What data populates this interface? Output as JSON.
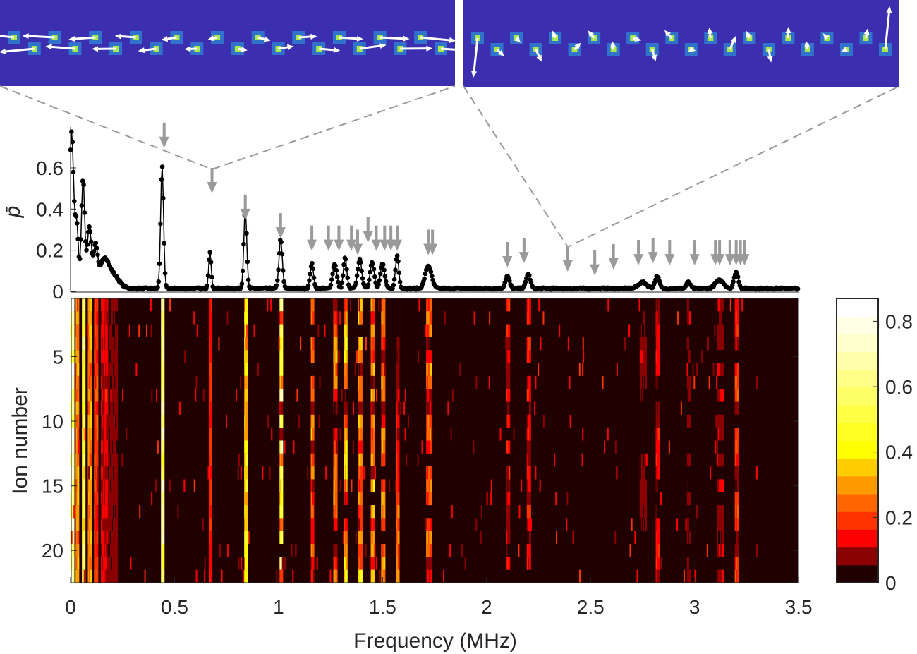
{
  "chart_data": [
    {
      "type": "line",
      "title": "",
      "ylabel": "p̄",
      "xlabel": "",
      "xlim": [
        0,
        3.5
      ],
      "ylim": [
        0,
        0.78
      ],
      "yticks": [
        "0",
        "0.2",
        "0.4",
        "0.6"
      ],
      "ytick_values": [
        0,
        0.2,
        0.4,
        0.6
      ],
      "peaks": [
        [
          0.005,
          0.76,
          0.01
        ],
        [
          0.06,
          0.53,
          0.008
        ],
        [
          0.03,
          0.3,
          0.008
        ],
        [
          0.09,
          0.3,
          0.01
        ],
        [
          0.12,
          0.2,
          0.01
        ],
        [
          0.16,
          0.12,
          0.02
        ],
        [
          0.2,
          0.07,
          0.03
        ],
        [
          0.44,
          0.6,
          0.007
        ],
        [
          0.67,
          0.18,
          0.006
        ],
        [
          0.84,
          0.39,
          0.007
        ],
        [
          1.01,
          0.24,
          0.008
        ],
        [
          1.16,
          0.12,
          0.008
        ],
        [
          1.27,
          0.12,
          0.01
        ],
        [
          1.32,
          0.15,
          0.008
        ],
        [
          1.39,
          0.14,
          0.01
        ],
        [
          1.45,
          0.13,
          0.01
        ],
        [
          1.5,
          0.12,
          0.01
        ],
        [
          1.57,
          0.16,
          0.008
        ],
        [
          1.72,
          0.11,
          0.015
        ],
        [
          2.1,
          0.06,
          0.01
        ],
        [
          2.2,
          0.07,
          0.01
        ],
        [
          2.75,
          0.03,
          0.02
        ],
        [
          2.82,
          0.06,
          0.01
        ],
        [
          2.97,
          0.03,
          0.01
        ],
        [
          3.12,
          0.04,
          0.02
        ],
        [
          3.2,
          0.08,
          0.01
        ]
      ],
      "arrows": [
        [
          0.45,
          0.82
        ],
        [
          0.68,
          0.6
        ],
        [
          0.84,
          0.47
        ],
        [
          1.01,
          0.38
        ],
        [
          1.16,
          0.32
        ],
        [
          1.24,
          0.32
        ],
        [
          1.29,
          0.32
        ],
        [
          1.35,
          0.32
        ],
        [
          1.38,
          0.3
        ],
        [
          1.43,
          0.36
        ],
        [
          1.47,
          0.32
        ],
        [
          1.51,
          0.32
        ],
        [
          1.54,
          0.32
        ],
        [
          1.57,
          0.32
        ],
        [
          1.72,
          0.3
        ],
        [
          1.74,
          0.3
        ],
        [
          2.1,
          0.24
        ],
        [
          2.18,
          0.26
        ],
        [
          2.39,
          0.22
        ],
        [
          2.52,
          0.2
        ],
        [
          2.61,
          0.23
        ],
        [
          2.73,
          0.25
        ],
        [
          2.8,
          0.26
        ],
        [
          2.88,
          0.25
        ],
        [
          3.0,
          0.25
        ],
        [
          3.1,
          0.25
        ],
        [
          3.12,
          0.25
        ],
        [
          3.17,
          0.25
        ],
        [
          3.2,
          0.25
        ],
        [
          3.22,
          0.25
        ],
        [
          3.24,
          0.25
        ]
      ]
    },
    {
      "type": "heatmap",
      "xlabel": "Frequency (MHz)",
      "ylabel": "Ion number",
      "xlim": [
        0,
        3.5
      ],
      "ylim": [
        1,
        22
      ],
      "xticks": [
        "0",
        "0.5",
        "1",
        "1.5",
        "2",
        "2.5",
        "3",
        "3.5"
      ],
      "xtick_values": [
        0,
        0.5,
        1,
        1.5,
        2,
        2.5,
        3,
        3.5
      ],
      "yticks": [
        "5",
        "10",
        "15",
        "20"
      ],
      "ytick_values": [
        5,
        10,
        15,
        20
      ],
      "colorbar": {
        "ticks": [
          "0",
          "0.2",
          "0.4",
          "0.6",
          "0.8"
        ],
        "tick_values": [
          0,
          0.2,
          0.4,
          0.6,
          0.8
        ],
        "range": [
          0,
          0.87
        ],
        "colors": [
          "#200000",
          "#8b0000",
          "#ff0000",
          "#ff3300",
          "#ff6600",
          "#ff9900",
          "#ffcc00",
          "#ffff00",
          "#ffff22",
          "#ffff44",
          "#ffff66",
          "#ffff88",
          "#ffffaa",
          "#ffffcc",
          "#ffffe6",
          "#ffffff"
        ]
      }
    }
  ],
  "insets": [
    {
      "mode_frequency": 0.68
    },
    {
      "mode_frequency": 2.39
    }
  ]
}
